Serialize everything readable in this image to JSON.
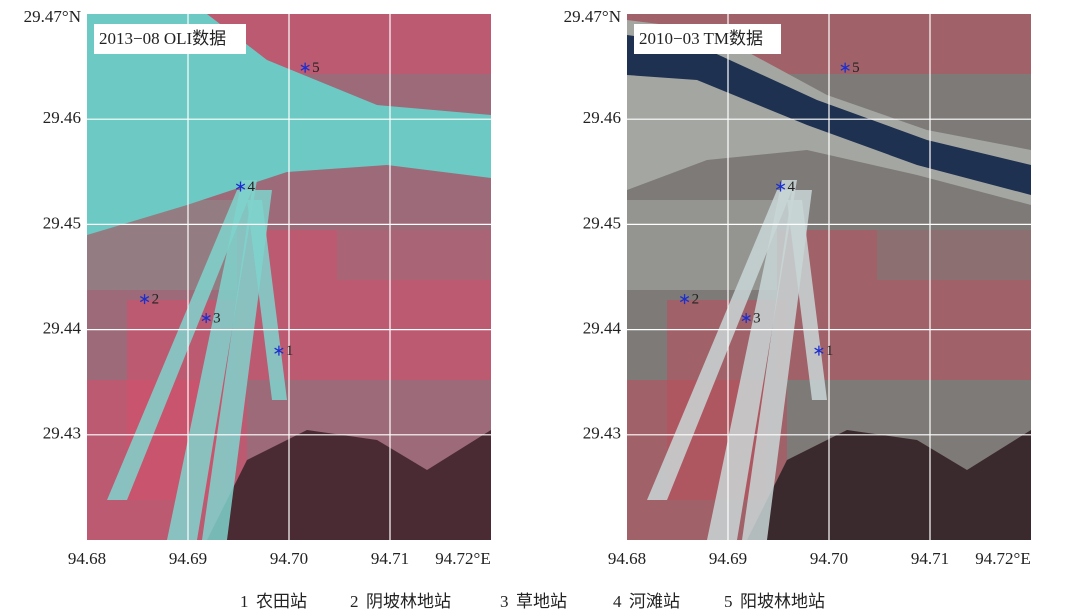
{
  "panels": [
    {
      "label": "2013−08 OLI数据"
    },
    {
      "label": "2010−03 TM数据"
    }
  ],
  "axes": {
    "xlim": [
      94.68,
      94.72
    ],
    "ylim": [
      29.42,
      29.47
    ],
    "xticks": [
      94.68,
      94.69,
      {
        "value": 94.7,
        "label": "94.70"
      },
      94.71,
      {
        "value": 94.72,
        "label": "94.72°E"
      }
    ],
    "yticks": [
      29.43,
      29.44,
      29.45,
      29.46,
      {
        "value": 29.47,
        "label": "29.47°N"
      }
    ]
  },
  "stations": [
    {
      "id": 1,
      "name": "农田站",
      "lon": 94.699,
      "lat": 29.438
    },
    {
      "id": 2,
      "name": "阴坡林地站",
      "lon": 94.6857,
      "lat": 29.4429
    },
    {
      "id": 3,
      "name": "草地站",
      "lon": 94.6918,
      "lat": 29.4411
    },
    {
      "id": 4,
      "name": "河滩站",
      "lon": 94.6952,
      "lat": 29.4536
    },
    {
      "id": 5,
      "name": "阳坡林地站",
      "lon": 94.7016,
      "lat": 29.4649
    }
  ]
}
